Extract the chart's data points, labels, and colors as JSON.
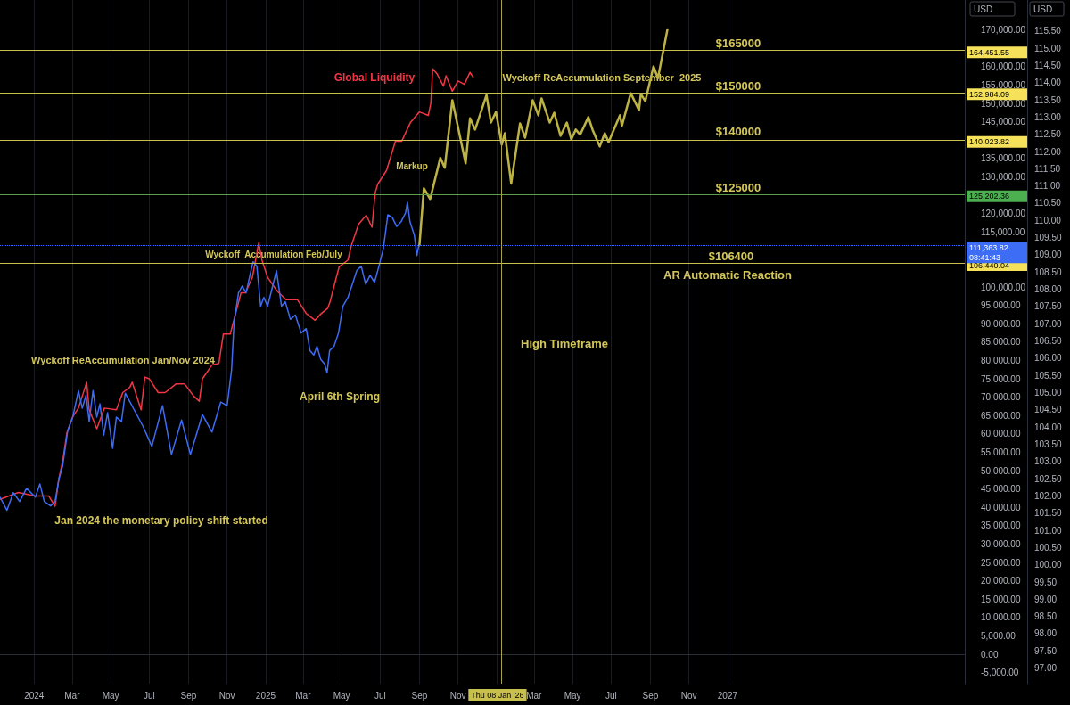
{
  "chart_data": {
    "type": "line",
    "ylabel": "USD",
    "y2label": "USD",
    "grid": "x",
    "xlim": [
      "2023-11-08",
      "2028-01-11"
    ],
    "xticks": [
      {
        "value": "2024-01-01",
        "label": "2024"
      },
      {
        "value": "2024-03-01",
        "label": "Mar"
      },
      {
        "value": "2024-05-01",
        "label": "May"
      },
      {
        "value": "2024-07-01",
        "label": "Jul"
      },
      {
        "value": "2024-09-01",
        "label": "Sep"
      },
      {
        "value": "2024-11-01",
        "label": "Nov"
      },
      {
        "value": "2025-01-01",
        "label": "2025"
      },
      {
        "value": "2025-03-01",
        "label": "Mar"
      },
      {
        "value": "2025-05-01",
        "label": "May"
      },
      {
        "value": "2025-07-01",
        "label": "Jul"
      },
      {
        "value": "2025-09-01",
        "label": "Sep"
      },
      {
        "value": "2025-11-01",
        "label": "Nov"
      },
      {
        "value": "2026-01-01",
        "label": null
      },
      {
        "value": "2026-03-01",
        "label": "Mar"
      },
      {
        "value": "2026-05-01",
        "label": "May"
      },
      {
        "value": "2026-07-01",
        "label": "Jul"
      },
      {
        "value": "2026-09-01",
        "label": "Sep"
      },
      {
        "value": "2026-11-01",
        "label": "Nov"
      },
      {
        "value": "2027-01-01",
        "label": "2027"
      }
    ],
    "ylim": [
      -8000,
      178200
    ],
    "yticks": [
      {
        "value": -5000,
        "label": "-5,000.00"
      },
      {
        "value": 0,
        "label": "0.00"
      },
      {
        "value": 5000,
        "label": "5,000.00"
      },
      {
        "value": 10000,
        "label": "10,000.00"
      },
      {
        "value": 15000,
        "label": "15,000.00"
      },
      {
        "value": 20000,
        "label": "20,000.00"
      },
      {
        "value": 25000,
        "label": "25,000.00"
      },
      {
        "value": 30000,
        "label": "30,000.00"
      },
      {
        "value": 35000,
        "label": "35,000.00"
      },
      {
        "value": 40000,
        "label": "40,000.00"
      },
      {
        "value": 45000,
        "label": "45,000.00"
      },
      {
        "value": 50000,
        "label": "50,000.00"
      },
      {
        "value": 55000,
        "label": "55,000.00"
      },
      {
        "value": 60000,
        "label": "60,000.00"
      },
      {
        "value": 65000,
        "label": "65,000.00"
      },
      {
        "value": 70000,
        "label": "70,000.00"
      },
      {
        "value": 75000,
        "label": "75,000.00"
      },
      {
        "value": 80000,
        "label": "80,000.00"
      },
      {
        "value": 85000,
        "label": "85,000.00"
      },
      {
        "value": 90000,
        "label": "90,000.00"
      },
      {
        "value": 95000,
        "label": "95,000.00"
      },
      {
        "value": 100000,
        "label": "100,000.00"
      },
      {
        "value": 115000,
        "label": "115,000.00"
      },
      {
        "value": 120000,
        "label": "120,000.00"
      },
      {
        "value": 130000,
        "label": "130,000.00"
      },
      {
        "value": 135000,
        "label": "135,000.00"
      },
      {
        "value": 145000,
        "label": "145,000.00"
      },
      {
        "value": 150000,
        "label": "150,000.00"
      },
      {
        "value": 155000,
        "label": "155,000.00"
      },
      {
        "value": 160000,
        "label": "160,000.00"
      },
      {
        "value": 170000,
        "label": "170,000.00"
      }
    ],
    "y2lim": [
      96.55,
      116.4
    ],
    "y2ticks": [
      {
        "value": 97,
        "label": "97.00"
      },
      {
        "value": 97.5,
        "label": "97.50"
      },
      {
        "value": 98,
        "label": "98.00"
      },
      {
        "value": 98.5,
        "label": "98.50"
      },
      {
        "value": 99,
        "label": "99.00"
      },
      {
        "value": 99.5,
        "label": "99.50"
      },
      {
        "value": 100,
        "label": "100.00"
      },
      {
        "value": 100.5,
        "label": "100.50"
      },
      {
        "value": 101,
        "label": "101.00"
      },
      {
        "value": 101.5,
        "label": "101.50"
      },
      {
        "value": 102,
        "label": "102.00"
      },
      {
        "value": 102.5,
        "label": "102.50"
      },
      {
        "value": 103,
        "label": "103.00"
      },
      {
        "value": 103.5,
        "label": "103.50"
      },
      {
        "value": 104,
        "label": "104.00"
      },
      {
        "value": 104.5,
        "label": "104.50"
      },
      {
        "value": 105,
        "label": "105.00"
      },
      {
        "value": 105.5,
        "label": "105.50"
      },
      {
        "value": 106,
        "label": "106.00"
      },
      {
        "value": 106.5,
        "label": "106.50"
      },
      {
        "value": 107,
        "label": "107.00"
      },
      {
        "value": 107.5,
        "label": "107.50"
      },
      {
        "value": 108,
        "label": "108.00"
      },
      {
        "value": 108.5,
        "label": "108.50"
      },
      {
        "value": 109,
        "label": "109.00"
      },
      {
        "value": 109.5,
        "label": "109.50"
      },
      {
        "value": 110,
        "label": "110.00"
      },
      {
        "value": 110.5,
        "label": "110.50"
      },
      {
        "value": 111,
        "label": "111.00"
      },
      {
        "value": 111.5,
        "label": "111.50"
      },
      {
        "value": 112,
        "label": "112.00"
      },
      {
        "value": 112.5,
        "label": "112.50"
      },
      {
        "value": 113,
        "label": "113.00"
      },
      {
        "value": 113.5,
        "label": "113.50"
      },
      {
        "value": 114,
        "label": "114.00"
      },
      {
        "value": 114.5,
        "label": "114.50"
      },
      {
        "value": 115,
        "label": "115.00"
      },
      {
        "value": 115.5,
        "label": "115.50"
      }
    ],
    "series": [
      {
        "name": "Global Liquidity",
        "color": "#f23645",
        "axis": "y2",
        "x": [
          "2023-11-08",
          "2023-12-07",
          "2024-01-03",
          "2024-01-24",
          "2024-02-03",
          "2024-02-09",
          "2024-02-15",
          "2024-02-22",
          "2024-03-02",
          "2024-03-11",
          "2024-03-24",
          "2024-03-28",
          "2024-04-09",
          "2024-04-21",
          "2024-05-10",
          "2024-05-20",
          "2024-05-31",
          "2024-06-04",
          "2024-06-18",
          "2024-06-24",
          "2024-07-01",
          "2024-07-15",
          "2024-07-26",
          "2024-08-12",
          "2024-08-26",
          "2024-09-09",
          "2024-09-18",
          "2024-09-23",
          "2024-10-08",
          "2024-10-19",
          "2024-10-26",
          "2024-11-06",
          "2024-11-13",
          "2024-11-23",
          "2024-11-30",
          "2024-12-11",
          "2024-12-21",
          "2024-12-26",
          "2025-01-04",
          "2025-01-19",
          "2025-02-02",
          "2025-02-20",
          "2025-03-06",
          "2025-03-20",
          "2025-03-30",
          "2025-04-09",
          "2025-04-13",
          "2025-04-17",
          "2025-04-27",
          "2025-05-11",
          "2025-05-16",
          "2025-05-28",
          "2025-06-09",
          "2025-06-18",
          "2025-06-23",
          "2025-06-27",
          "2025-07-11",
          "2025-07-25",
          "2025-08-04",
          "2025-08-18",
          "2025-09-01",
          "2025-09-15",
          "2025-09-19",
          "2025-09-22",
          "2025-09-29",
          "2025-10-09",
          "2025-10-13",
          "2025-10-23",
          "2025-11-01",
          "2025-11-11",
          "2025-11-20",
          "2025-11-25"
        ],
        "values": [
          101.9,
          102.1,
          102.0,
          102.0,
          101.7,
          102.5,
          103.0,
          103.85,
          104.3,
          104.55,
          105.3,
          104.5,
          103.95,
          104.55,
          104.5,
          105.0,
          105.15,
          105.3,
          104.5,
          105.45,
          105.4,
          105.0,
          105.0,
          105.25,
          105.25,
          104.9,
          104.75,
          105.4,
          105.8,
          105.85,
          106.7,
          106.7,
          107.2,
          107.9,
          107.9,
          108.35,
          109.35,
          108.85,
          108.35,
          107.95,
          107.7,
          107.7,
          107.3,
          107.1,
          107.3,
          107.45,
          107.65,
          107.95,
          108.65,
          108.85,
          109.25,
          109.9,
          110.15,
          109.8,
          110.8,
          111.05,
          111.45,
          112.3,
          112.3,
          112.85,
          113.15,
          113.05,
          113.4,
          114.4,
          114.25,
          113.9,
          114.2,
          113.75,
          114.05,
          113.95,
          114.3,
          114.15
        ]
      },
      {
        "color": "#3d6cf5",
        "x": [
          "2023-11-08",
          "2023-11-19",
          "2023-11-29",
          "2023-12-09",
          "2023-12-20",
          "2024-01-03",
          "2024-01-10",
          "2024-01-17",
          "2024-01-27",
          "2024-02-03",
          "2024-02-09",
          "2024-02-15",
          "2024-02-23",
          "2024-03-02",
          "2024-03-11",
          "2024-03-17",
          "2024-03-23",
          "2024-03-28",
          "2024-04-03",
          "2024-04-09",
          "2024-04-14",
          "2024-04-20",
          "2024-04-26",
          "2024-05-04",
          "2024-05-10",
          "2024-05-18",
          "2024-05-24",
          "2024-06-21",
          "2024-07-05",
          "2024-07-22",
          "2024-08-05",
          "2024-08-21",
          "2024-09-04",
          "2024-09-23",
          "2024-10-08",
          "2024-10-22",
          "2024-11-01",
          "2024-11-08",
          "2024-11-12",
          "2024-11-19",
          "2024-11-25",
          "2024-12-01",
          "2024-12-07",
          "2024-12-12",
          "2024-12-18",
          "2024-12-24",
          "2024-12-29",
          "2025-01-04",
          "2025-01-11",
          "2025-01-18",
          "2025-01-26",
          "2025-02-01",
          "2025-02-09",
          "2025-02-17",
          "2025-02-26",
          "2025-03-06",
          "2025-03-12",
          "2025-03-18",
          "2025-03-23",
          "2025-03-29",
          "2025-04-04",
          "2025-04-08",
          "2025-04-12",
          "2025-04-19",
          "2025-04-26",
          "2025-05-03",
          "2025-05-11",
          "2025-05-18",
          "2025-05-25",
          "2025-06-01",
          "2025-06-08",
          "2025-06-15",
          "2025-06-22",
          "2025-06-29",
          "2025-07-06",
          "2025-07-13",
          "2025-07-20",
          "2025-07-27",
          "2025-08-03",
          "2025-08-10",
          "2025-08-13",
          "2025-08-17",
          "2025-08-24",
          "2025-08-28",
          "2025-08-31"
        ],
        "values": [
          42800,
          39200,
          44000,
          41600,
          45200,
          42800,
          46400,
          41600,
          40400,
          41600,
          47600,
          51300,
          60900,
          64600,
          71800,
          67000,
          70600,
          63400,
          71800,
          64600,
          68200,
          59700,
          65800,
          56100,
          64600,
          63400,
          71100,
          62100,
          56600,
          67700,
          54400,
          63800,
          54400,
          65300,
          60500,
          68700,
          67700,
          77400,
          90400,
          98400,
          100300,
          98400,
          103200,
          106900,
          105700,
          94800,
          97200,
          94800,
          99600,
          104500,
          94800,
          96000,
          91200,
          92400,
          87500,
          88700,
          82700,
          81500,
          83900,
          80300,
          79100,
          76700,
          82700,
          83900,
          87500,
          94800,
          97200,
          100800,
          104500,
          105700,
          100800,
          103200,
          101300,
          105700,
          110500,
          119700,
          119000,
          116500,
          117800,
          120200,
          123100,
          117800,
          114100,
          108600,
          111400
        ]
      },
      {
        "color": "#bdb345",
        "x": [
          "2025-09-01",
          "2025-09-08",
          "2025-09-18",
          "2025-10-04",
          "2025-10-11",
          "2025-10-23",
          "2025-11-13",
          "2025-11-20",
          "2025-11-28",
          "2025-12-16",
          "2025-12-23",
          "2025-12-31",
          "2026-01-09",
          "2026-01-14",
          "2026-01-24",
          "2026-02-07",
          "2026-02-15",
          "2026-02-27",
          "2026-03-08",
          "2026-03-13",
          "2026-03-26",
          "2026-04-02",
          "2026-04-12",
          "2026-04-22",
          "2026-04-29",
          "2026-05-06",
          "2026-05-13",
          "2026-05-26",
          "2026-06-02",
          "2026-06-13",
          "2026-06-21",
          "2026-06-27",
          "2026-07-15",
          "2026-07-18",
          "2026-08-01",
          "2026-08-14",
          "2026-08-17",
          "2026-08-24",
          "2026-09-06",
          "2026-09-13",
          "2026-09-28"
        ],
        "values": [
          111400,
          126900,
          124000,
          135200,
          132500,
          150900,
          133700,
          146000,
          142900,
          152300,
          144800,
          147700,
          138800,
          141900,
          128200,
          144600,
          140700,
          150900,
          146800,
          151400,
          144800,
          147500,
          141200,
          144800,
          140200,
          142900,
          141500,
          146300,
          142700,
          138300,
          141900,
          139500,
          146800,
          143900,
          152800,
          148200,
          152600,
          150600,
          160100,
          156900,
          170200
        ]
      }
    ],
    "ref_lines": [
      {
        "axis": "y",
        "value": 164451.55,
        "label": "164,451.55",
        "color": "#c9bf4c"
      },
      {
        "axis": "y",
        "value": 152984.09,
        "label": "152,984.09",
        "color": "#c9bf4c"
      },
      {
        "axis": "y",
        "value": 140023.82,
        "label": "140,023.82",
        "color": "#c9bf4c"
      },
      {
        "axis": "y",
        "value": 125202.36,
        "label": "125,202.36",
        "color": "#5c9e4a"
      },
      {
        "axis": "y",
        "value": 106440.04,
        "label": "106,440.04",
        "color": "#c9bf4c"
      },
      {
        "axis": "y",
        "value": 111363.82,
        "label": "111,363.82 08:41:43",
        "color": "#3d6cf5",
        "line_style": "dotted"
      },
      {
        "axis": "x",
        "value": "2026-01-08",
        "label": "Thu 08 Jan '26",
        "color": "#a9a24a"
      }
    ],
    "annotations": [
      "Wyckoff ReAccumulation Jan/Nov 2024",
      "Jan 2024 the monetary policy shift started",
      "Wyckoff  Accumulation Feb/July",
      "April 6th Spring",
      "Markup",
      "Wyckoff ReAccumulation September  2025",
      "High Timeframe",
      "AR Automatic Reaction",
      "$165000",
      "$150000",
      "$140000",
      "$125000",
      "$106400"
    ]
  }
}
